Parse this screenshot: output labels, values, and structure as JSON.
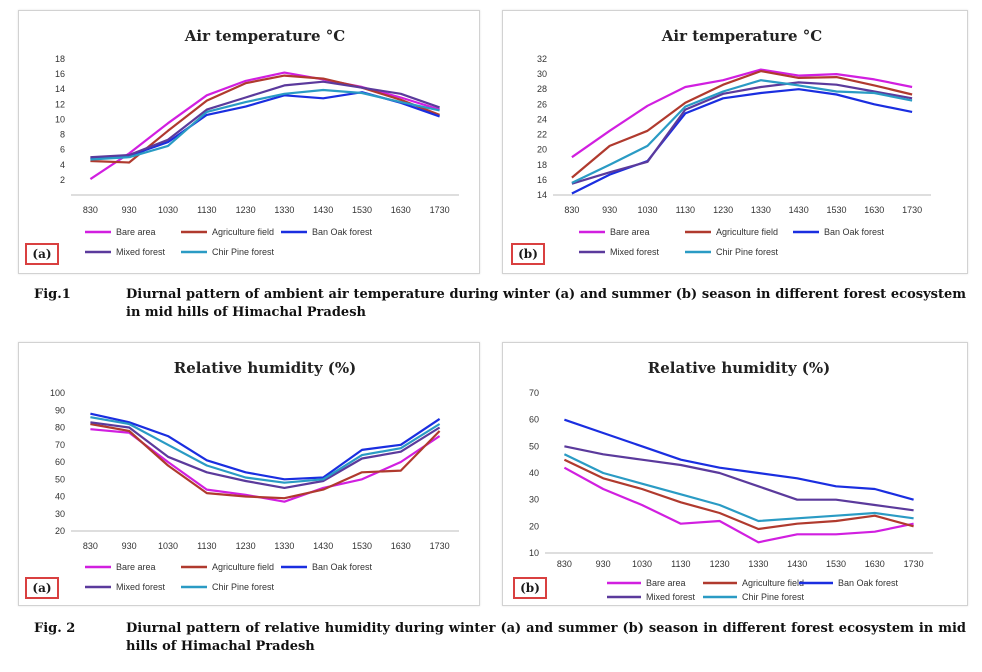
{
  "figure1": {
    "number": "Fig.1",
    "caption": "Diurnal pattern of ambient air temperature during winter (a) and summer (b) season in different forest ecosystem in mid hills of Himachal Pradesh"
  },
  "figure2": {
    "number": "Fig. 2",
    "caption": "Diurnal pattern of relative humidity during winter (a) and summer (b) season in different forest ecosystem in mid hills of Himachal Pradesh"
  },
  "panels": [
    {
      "tag": "(a)"
    },
    {
      "tag": "(b)"
    },
    {
      "tag": "(a)"
    },
    {
      "tag": "(b)"
    }
  ],
  "chart_data": [
    {
      "type": "line",
      "title": "Air temperature °C",
      "categories": [
        "830",
        "930",
        "1030",
        "1130",
        "1230",
        "1330",
        "1430",
        "1530",
        "1630",
        "1730"
      ],
      "ylim": [
        0,
        18
      ],
      "yticks": [
        2,
        4,
        6,
        8,
        10,
        12,
        14,
        16,
        18
      ],
      "grid": false,
      "legend": "bottom",
      "series": [
        {
          "name": "Bare area",
          "color": "#d11fe0",
          "values": [
            2.1,
            5.5,
            9.5,
            13.2,
            15.1,
            16.2,
            15.3,
            14.3,
            12.9,
            11.3
          ]
        },
        {
          "name": "Agriculture field",
          "color": "#b03a2e",
          "values": [
            4.5,
            4.3,
            8.5,
            12.5,
            14.8,
            15.8,
            15.4,
            14.2,
            12.6,
            10.6
          ]
        },
        {
          "name": "Ban Oak forest",
          "color": "#1a2ee0",
          "values": [
            4.8,
            5.2,
            7.0,
            10.6,
            11.7,
            13.2,
            12.8,
            13.6,
            12.2,
            10.4
          ]
        },
        {
          "name": "Mixed forest",
          "color": "#5b3a9c",
          "values": [
            5.0,
            5.3,
            7.3,
            11.3,
            12.9,
            14.5,
            15.0,
            14.2,
            13.4,
            11.6
          ]
        },
        {
          "name": "Chir Pine forest",
          "color": "#2a9bc4",
          "values": [
            4.7,
            5.0,
            6.5,
            11.0,
            12.3,
            13.4,
            13.9,
            13.5,
            12.3,
            11.2
          ]
        }
      ]
    },
    {
      "type": "line",
      "title": "Air temperature °C",
      "categories": [
        "830",
        "930",
        "1030",
        "1130",
        "1230",
        "1330",
        "1430",
        "1530",
        "1630",
        "1730"
      ],
      "ylim": [
        14,
        32
      ],
      "yticks": [
        14,
        16,
        18,
        20,
        22,
        24,
        26,
        28,
        30,
        32
      ],
      "grid": false,
      "legend": "bottom",
      "series": [
        {
          "name": "Bare area",
          "color": "#d11fe0",
          "values": [
            19.0,
            22.5,
            25.8,
            28.3,
            29.2,
            30.6,
            29.8,
            30.0,
            29.3,
            28.3
          ]
        },
        {
          "name": "Agriculture field",
          "color": "#b03a2e",
          "values": [
            16.3,
            20.5,
            22.5,
            26.2,
            28.6,
            30.4,
            29.5,
            29.6,
            28.5,
            27.3
          ]
        },
        {
          "name": "Ban Oak forest",
          "color": "#1a2ee0",
          "values": [
            14.2,
            16.7,
            18.5,
            24.8,
            26.8,
            27.5,
            28.0,
            27.3,
            26.0,
            25.0
          ]
        },
        {
          "name": "Mixed forest",
          "color": "#5b3a9c",
          "values": [
            15.5,
            17.0,
            18.4,
            25.3,
            27.4,
            28.3,
            28.9,
            28.6,
            27.7,
            26.8
          ]
        },
        {
          "name": "Chir Pine forest",
          "color": "#2a9bc4",
          "values": [
            15.6,
            18.0,
            20.5,
            25.7,
            27.7,
            29.2,
            28.5,
            27.7,
            27.5,
            26.5
          ]
        }
      ]
    },
    {
      "type": "line",
      "title": "Relative humidity  (%)",
      "categories": [
        "830",
        "930",
        "1030",
        "1130",
        "1230",
        "1330",
        "1430",
        "1530",
        "1630",
        "1730"
      ],
      "ylim": [
        20,
        100
      ],
      "yticks": [
        20,
        30,
        40,
        50,
        60,
        70,
        80,
        90,
        100
      ],
      "grid": false,
      "legend": "bottom",
      "series": [
        {
          "name": "Bare area",
          "color": "#d11fe0",
          "values": [
            79,
            77,
            60,
            44,
            41,
            37,
            45,
            50,
            60,
            75
          ]
        },
        {
          "name": "Agriculture field",
          "color": "#b03a2e",
          "values": [
            82,
            78,
            58,
            42,
            40,
            39,
            44,
            54,
            55,
            78
          ]
        },
        {
          "name": "Ban Oak forest",
          "color": "#1a2ee0",
          "values": [
            88,
            83,
            75,
            61,
            54,
            50,
            51,
            67,
            70,
            85
          ]
        },
        {
          "name": "Mixed forest",
          "color": "#5b3a9c",
          "values": [
            83,
            80,
            63,
            54,
            49,
            45,
            49,
            62,
            66,
            80
          ]
        },
        {
          "name": "Chir Pine forest",
          "color": "#2a9bc4",
          "values": [
            86,
            82,
            70,
            58,
            51,
            48,
            50,
            64,
            68,
            82
          ]
        }
      ]
    },
    {
      "type": "line",
      "title": "Relative humidity  (%)",
      "categories": [
        "830",
        "930",
        "1030",
        "1130",
        "1230",
        "1330",
        "1430",
        "1530",
        "1630",
        "1730"
      ],
      "ylim": [
        10,
        70
      ],
      "yticks": [
        10,
        20,
        30,
        40,
        50,
        60,
        70
      ],
      "grid": false,
      "legend": "bottom",
      "series": [
        {
          "name": "Bare area",
          "color": "#d11fe0",
          "values": [
            42,
            34,
            28,
            21,
            22,
            14,
            17,
            17,
            18,
            21
          ]
        },
        {
          "name": "Agriculture field",
          "color": "#b03a2e",
          "values": [
            45,
            38,
            34,
            29,
            25,
            19,
            21,
            22,
            24,
            20
          ]
        },
        {
          "name": "Ban Oak forest",
          "color": "#1a2ee0",
          "values": [
            60,
            55,
            50,
            45,
            42,
            40,
            38,
            35,
            34,
            30
          ]
        },
        {
          "name": "Mixed forest",
          "color": "#5b3a9c",
          "values": [
            50,
            47,
            45,
            43,
            40,
            35,
            30,
            30,
            28,
            26
          ]
        },
        {
          "name": "Chir Pine forest",
          "color": "#2a9bc4",
          "values": [
            47,
            40,
            36,
            32,
            28,
            22,
            23,
            24,
            25,
            23
          ]
        }
      ]
    }
  ]
}
